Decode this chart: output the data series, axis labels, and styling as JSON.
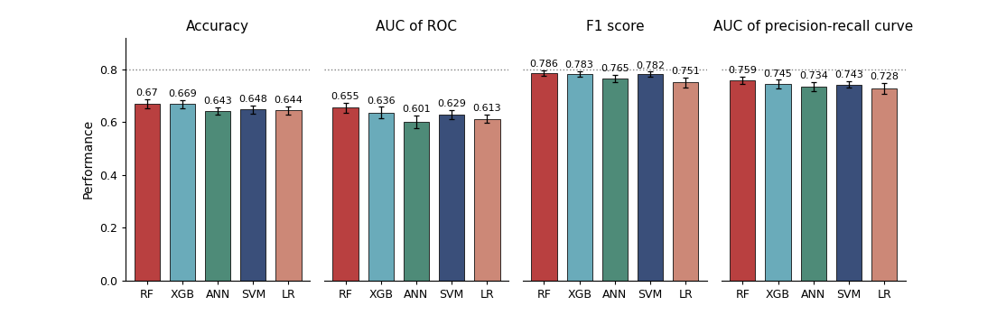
{
  "groups": [
    "Accuracy",
    "AUC of ROC",
    "F1 score",
    "AUC of precision-recall curve"
  ],
  "models": [
    "RF",
    "XGB",
    "ANN",
    "SVM",
    "LR"
  ],
  "values": [
    [
      0.67,
      0.669,
      0.643,
      0.648,
      0.644
    ],
    [
      0.655,
      0.636,
      0.601,
      0.629,
      0.613
    ],
    [
      0.786,
      0.783,
      0.765,
      0.782,
      0.751
    ],
    [
      0.759,
      0.745,
      0.734,
      0.743,
      0.728
    ]
  ],
  "errors": [
    [
      0.018,
      0.016,
      0.014,
      0.015,
      0.016
    ],
    [
      0.018,
      0.022,
      0.024,
      0.018,
      0.016
    ],
    [
      0.01,
      0.01,
      0.014,
      0.01,
      0.018
    ],
    [
      0.013,
      0.016,
      0.018,
      0.013,
      0.02
    ]
  ],
  "bar_colors": [
    "#b94040",
    "#6aabba",
    "#4e8b78",
    "#3a4f7a",
    "#cc8877"
  ],
  "bar_edge_color": "#111111",
  "background_color": "#ffffff",
  "ylabel": "Performance",
  "ylim": [
    0.0,
    0.92
  ],
  "yticks": [
    0.0,
    0.2,
    0.4,
    0.6,
    0.8
  ],
  "dotted_line_y": 0.8,
  "title_fontsize": 11,
  "label_fontsize": 10,
  "tick_fontsize": 9,
  "value_fontsize": 8,
  "bar_width": 0.72
}
